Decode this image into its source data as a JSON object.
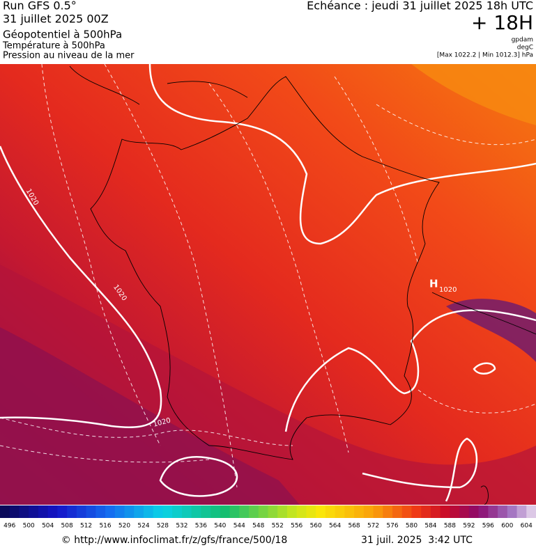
{
  "header": {
    "run": "Run GFS 0.5°",
    "date": "31 juillet 2025 00Z",
    "field": "Géopotentiel à 500hPa",
    "field2": "Température à 500hPa",
    "field3": "Pression au niveau de la mer",
    "echeance": "Echéance : jeudi 31 juillet 2025 18h UTC",
    "lead": "+ 18H",
    "unit1": "gpdam",
    "unit2": "degC",
    "range": "[Max 1022.2 | Min 1012.3] hPa"
  },
  "map": {
    "contour_labels": [
      "1020",
      "1020",
      "1020"
    ],
    "high": {
      "symbol": "H",
      "value": "1020"
    }
  },
  "colorbar": {
    "labels": [
      496,
      500,
      504,
      508,
      512,
      516,
      520,
      524,
      528,
      532,
      536,
      540,
      544,
      548,
      552,
      556,
      560,
      564,
      568,
      572,
      576,
      580,
      584,
      588,
      592,
      596,
      600,
      604
    ]
  },
  "footer": {
    "url": "© http://www.infoclimat.fr/z/gfs/france/500/18",
    "time": "31 juil. 2025  3:42 UTC"
  }
}
